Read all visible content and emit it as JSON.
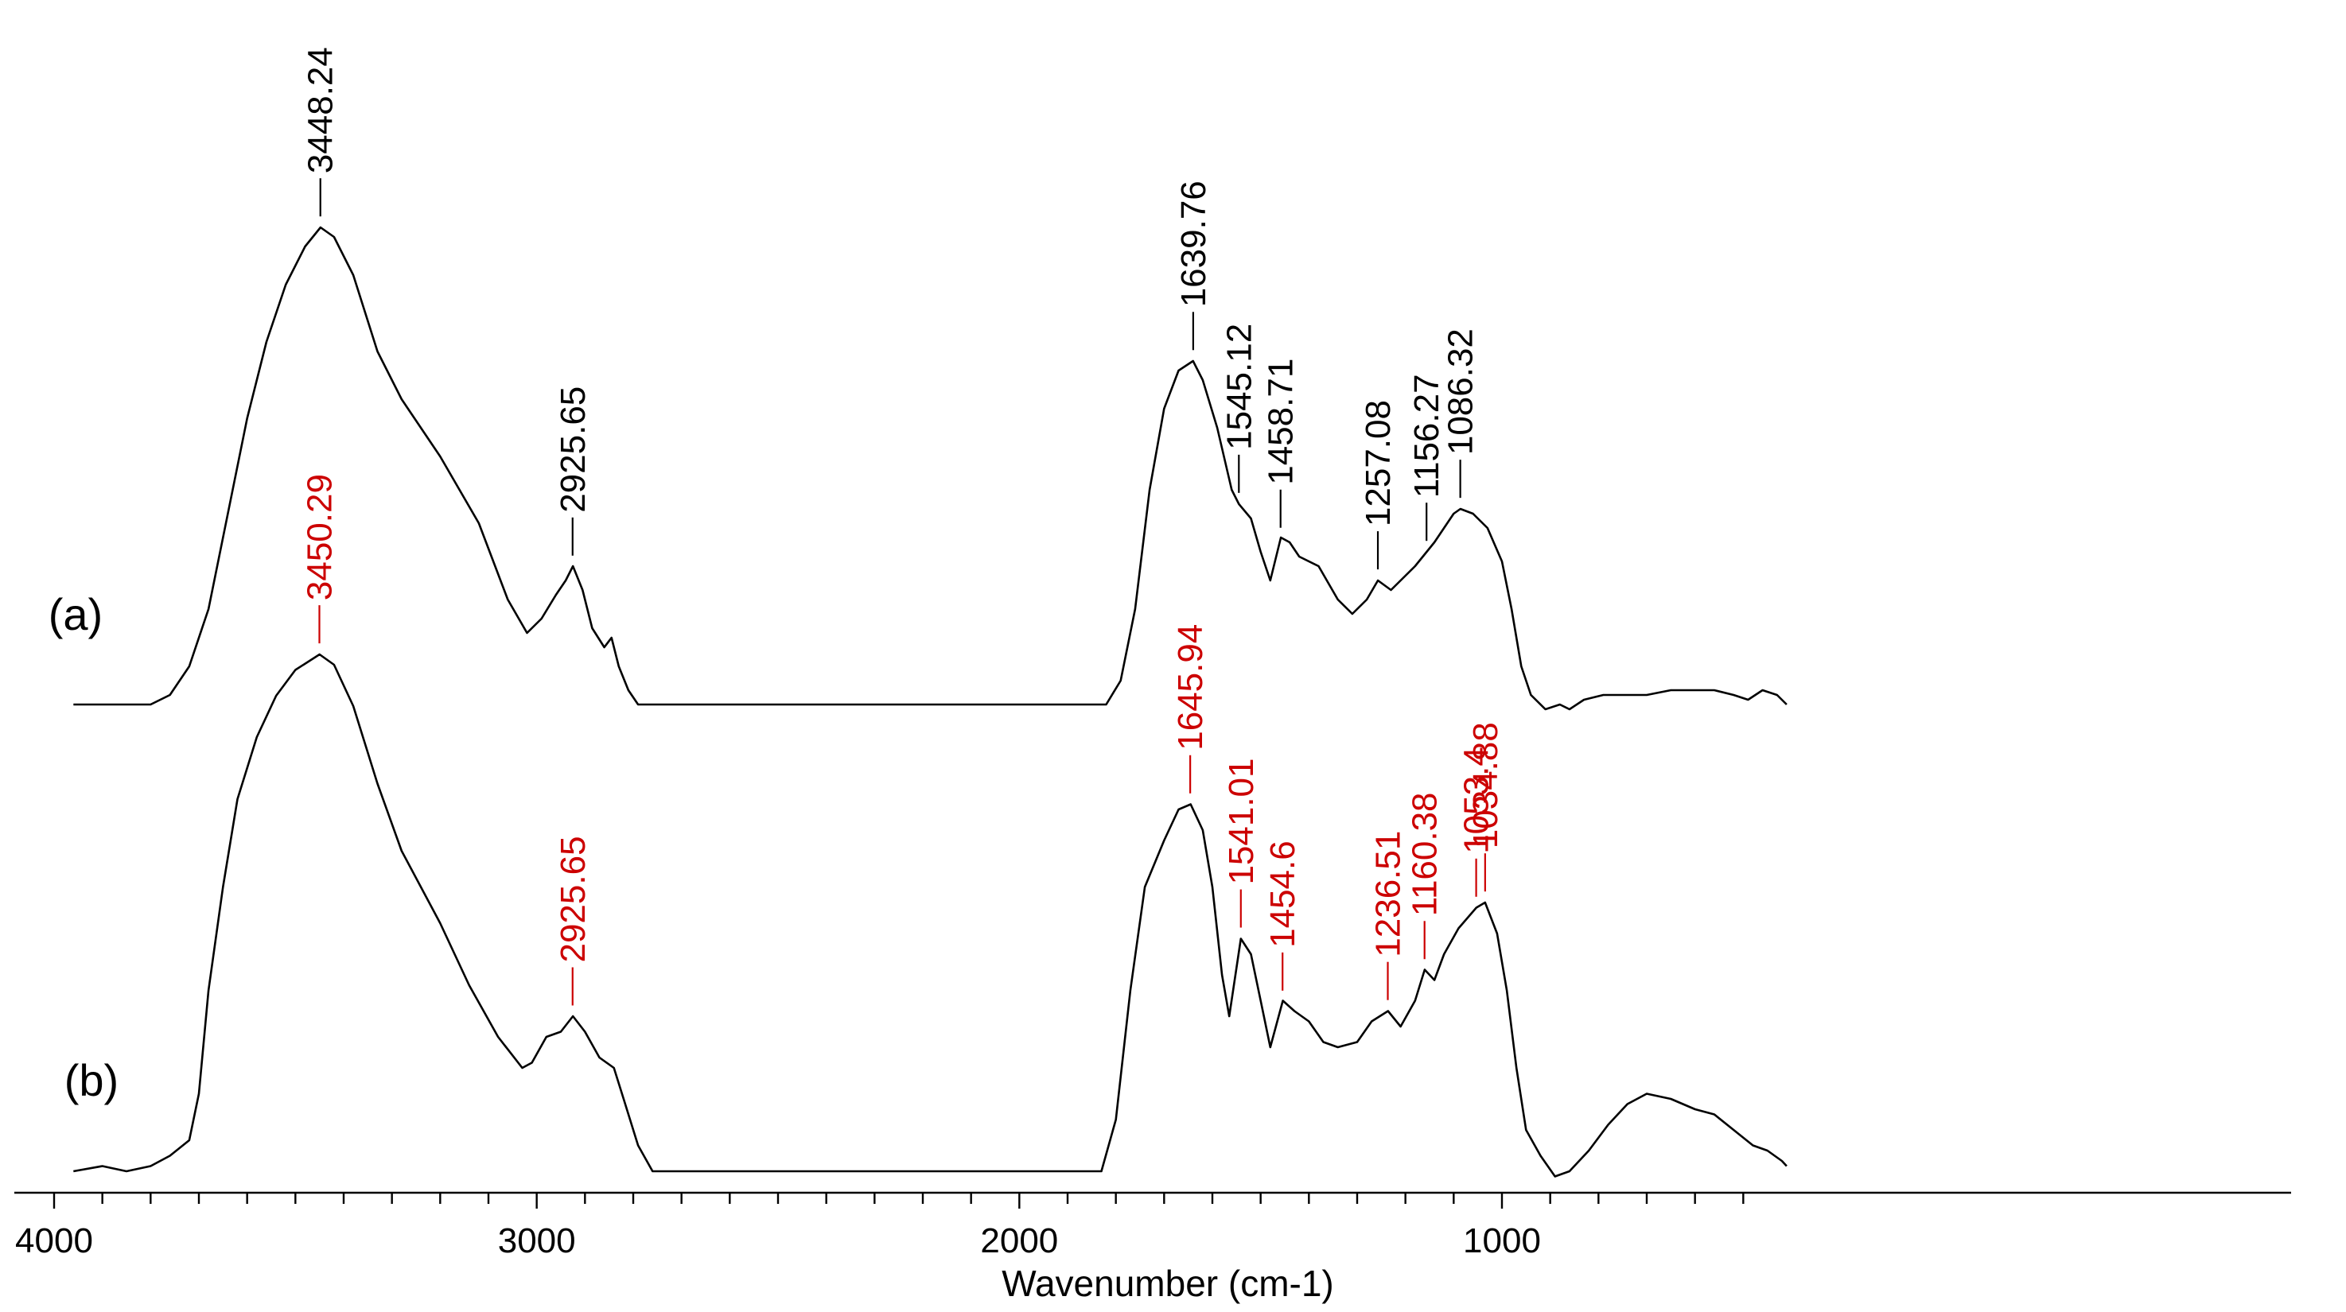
{
  "chart_data": {
    "type": "line",
    "xlabel": "Wavenumber (cm-1)",
    "ylabel": "",
    "xlim": [
      4000,
      400
    ],
    "x_reversed": true,
    "grid": false,
    "x_ticks": [
      4000,
      3000,
      2000,
      1000
    ],
    "x_tick_labels": [
      "4000",
      "3000",
      "2000",
      "1000"
    ],
    "series": [
      {
        "name": "(a)",
        "color": "#000000",
        "label_color": "#000000",
        "points": [
          [
            3960,
            0.0
          ],
          [
            3900,
            0.0
          ],
          [
            3800,
            0.0
          ],
          [
            3760,
            0.02
          ],
          [
            3720,
            0.08
          ],
          [
            3680,
            0.2
          ],
          [
            3640,
            0.4
          ],
          [
            3600,
            0.6
          ],
          [
            3560,
            0.76
          ],
          [
            3520,
            0.88
          ],
          [
            3480,
            0.96
          ],
          [
            3448,
            1.0
          ],
          [
            3420,
            0.98
          ],
          [
            3380,
            0.9
          ],
          [
            3330,
            0.74
          ],
          [
            3280,
            0.64
          ],
          [
            3200,
            0.52
          ],
          [
            3120,
            0.38
          ],
          [
            3060,
            0.22
          ],
          [
            3020,
            0.15
          ],
          [
            2990,
            0.18
          ],
          [
            2960,
            0.23
          ],
          [
            2940,
            0.26
          ],
          [
            2925,
            0.29
          ],
          [
            2905,
            0.24
          ],
          [
            2885,
            0.16
          ],
          [
            2860,
            0.12
          ],
          [
            2845,
            0.14
          ],
          [
            2830,
            0.08
          ],
          [
            2810,
            0.03
          ],
          [
            2790,
            0.0
          ],
          [
            2200,
            0.0
          ],
          [
            1820,
            0.0
          ],
          [
            1790,
            0.05
          ],
          [
            1760,
            0.2
          ],
          [
            1730,
            0.45
          ],
          [
            1700,
            0.62
          ],
          [
            1670,
            0.7
          ],
          [
            1640,
            0.72
          ],
          [
            1620,
            0.68
          ],
          [
            1590,
            0.58
          ],
          [
            1560,
            0.45
          ],
          [
            1545,
            0.42
          ],
          [
            1520,
            0.39
          ],
          [
            1500,
            0.32
          ],
          [
            1480,
            0.26
          ],
          [
            1458,
            0.35
          ],
          [
            1440,
            0.34
          ],
          [
            1420,
            0.31
          ],
          [
            1380,
            0.29
          ],
          [
            1340,
            0.22
          ],
          [
            1310,
            0.19
          ],
          [
            1280,
            0.22
          ],
          [
            1257,
            0.26
          ],
          [
            1230,
            0.24
          ],
          [
            1200,
            0.27
          ],
          [
            1180,
            0.29
          ],
          [
            1156,
            0.32
          ],
          [
            1140,
            0.34
          ],
          [
            1120,
            0.37
          ],
          [
            1100,
            0.4
          ],
          [
            1086,
            0.41
          ],
          [
            1060,
            0.4
          ],
          [
            1030,
            0.37
          ],
          [
            1000,
            0.3
          ],
          [
            980,
            0.2
          ],
          [
            960,
            0.08
          ],
          [
            940,
            0.02
          ],
          [
            910,
            -0.01
          ],
          [
            880,
            0.0
          ],
          [
            860,
            -0.01
          ],
          [
            830,
            0.01
          ],
          [
            790,
            0.02
          ],
          [
            740,
            0.02
          ],
          [
            700,
            0.02
          ],
          [
            650,
            0.03
          ],
          [
            600,
            0.03
          ],
          [
            560,
            0.03
          ],
          [
            520,
            0.02
          ],
          [
            490,
            0.01
          ],
          [
            460,
            0.03
          ],
          [
            430,
            0.02
          ],
          [
            410,
            0.0
          ]
        ],
        "peaks": [
          {
            "x": 3448.24,
            "label": "3448.24"
          },
          {
            "x": 2925.65,
            "label": "2925.65"
          },
          {
            "x": 1639.76,
            "label": "1639.76"
          },
          {
            "x": 1545.12,
            "label": "1545.12"
          },
          {
            "x": 1458.71,
            "label": "1458.71"
          },
          {
            "x": 1257.08,
            "label": "1257.08"
          },
          {
            "x": 1156.27,
            "label": "1156.27"
          },
          {
            "x": 1086.32,
            "label": "1086.32"
          }
        ]
      },
      {
        "name": "(b)",
        "color": "#000000",
        "label_color": "#cc0000",
        "points": [
          [
            3960,
            0.0
          ],
          [
            3900,
            0.01
          ],
          [
            3850,
            0.0
          ],
          [
            3800,
            0.01
          ],
          [
            3760,
            0.03
          ],
          [
            3720,
            0.06
          ],
          [
            3700,
            0.15
          ],
          [
            3680,
            0.35
          ],
          [
            3650,
            0.55
          ],
          [
            3620,
            0.72
          ],
          [
            3580,
            0.84
          ],
          [
            3540,
            0.92
          ],
          [
            3500,
            0.97
          ],
          [
            3450,
            1.0
          ],
          [
            3420,
            0.98
          ],
          [
            3380,
            0.9
          ],
          [
            3330,
            0.75
          ],
          [
            3280,
            0.62
          ],
          [
            3200,
            0.48
          ],
          [
            3140,
            0.36
          ],
          [
            3080,
            0.26
          ],
          [
            3030,
            0.2
          ],
          [
            3010,
            0.21
          ],
          [
            2980,
            0.26
          ],
          [
            2950,
            0.27
          ],
          [
            2925,
            0.3
          ],
          [
            2900,
            0.27
          ],
          [
            2870,
            0.22
          ],
          [
            2840,
            0.2
          ],
          [
            2820,
            0.14
          ],
          [
            2790,
            0.05
          ],
          [
            2760,
            0.0
          ],
          [
            2100,
            0.0
          ],
          [
            1830,
            0.0
          ],
          [
            1800,
            0.1
          ],
          [
            1770,
            0.35
          ],
          [
            1740,
            0.55
          ],
          [
            1700,
            0.64
          ],
          [
            1670,
            0.7
          ],
          [
            1645,
            0.71
          ],
          [
            1620,
            0.66
          ],
          [
            1600,
            0.55
          ],
          [
            1580,
            0.38
          ],
          [
            1565,
            0.3
          ],
          [
            1541,
            0.45
          ],
          [
            1520,
            0.42
          ],
          [
            1500,
            0.33
          ],
          [
            1480,
            0.24
          ],
          [
            1454,
            0.33
          ],
          [
            1430,
            0.31
          ],
          [
            1400,
            0.29
          ],
          [
            1370,
            0.25
          ],
          [
            1340,
            0.24
          ],
          [
            1300,
            0.25
          ],
          [
            1270,
            0.29
          ],
          [
            1236,
            0.31
          ],
          [
            1210,
            0.28
          ],
          [
            1180,
            0.33
          ],
          [
            1160,
            0.39
          ],
          [
            1140,
            0.37
          ],
          [
            1120,
            0.42
          ],
          [
            1090,
            0.47
          ],
          [
            1053,
            0.51
          ],
          [
            1035,
            0.52
          ],
          [
            1010,
            0.46
          ],
          [
            990,
            0.35
          ],
          [
            970,
            0.2
          ],
          [
            950,
            0.08
          ],
          [
            920,
            0.03
          ],
          [
            890,
            -0.01
          ],
          [
            860,
            0.0
          ],
          [
            820,
            0.04
          ],
          [
            780,
            0.09
          ],
          [
            740,
            0.13
          ],
          [
            700,
            0.15
          ],
          [
            650,
            0.14
          ],
          [
            600,
            0.12
          ],
          [
            560,
            0.11
          ],
          [
            520,
            0.08
          ],
          [
            480,
            0.05
          ],
          [
            450,
            0.04
          ],
          [
            420,
            0.02
          ],
          [
            410,
            0.01
          ]
        ],
        "peaks": [
          {
            "x": 3450.29,
            "label": "3450.29"
          },
          {
            "x": 2925.65,
            "label": "2925.65"
          },
          {
            "x": 1645.94,
            "label": "1645.94"
          },
          {
            "x": 1541.01,
            "label": "1541.01"
          },
          {
            "x": 1454.6,
            "label": "1454.6"
          },
          {
            "x": 1236.51,
            "label": "1236.51"
          },
          {
            "x": 1160.38,
            "label": "1160.38"
          },
          {
            "x": 1053.4,
            "label": "1053.4"
          },
          {
            "x": 1034.88,
            "label": "1034.88"
          }
        ]
      }
    ]
  }
}
